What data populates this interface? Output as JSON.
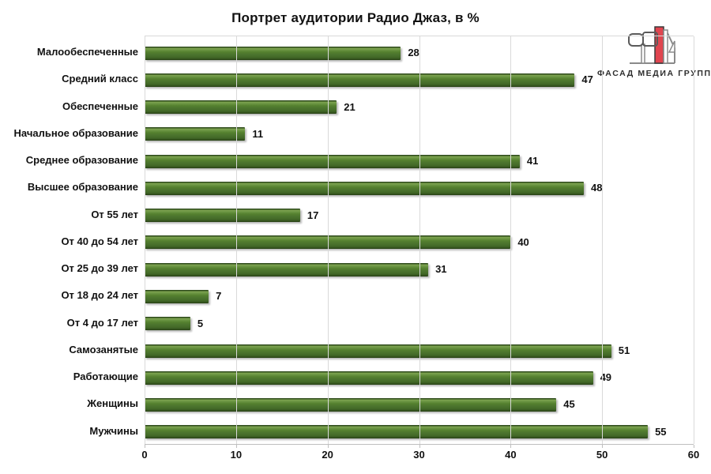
{
  "title": "Портрет аудитории Радио Джаз, в %",
  "logo": {
    "text": "ФАСАД МЕДИА ГРУПП",
    "icon": "fasad-media-group-monogram",
    "accent_color": "#e0454f",
    "outline_color": "#8a8a8a",
    "text_color": "#2e2e2e"
  },
  "chart_data": {
    "type": "bar",
    "orientation": "horizontal",
    "order": "top-to-bottom",
    "title": "Портрет аудитории Радио Джаз, в %",
    "categories": [
      "Малообеспеченные",
      "Средний класс",
      "Обеспеченные",
      "Начальное образование",
      "Среднее образование",
      "Высшее образование",
      "От 55 лет",
      "От 40 до 54 лет",
      "От 25 до 39 лет",
      "От 18 до 24 лет",
      "От 4 до 17 лет",
      "Самозанятые",
      "Работающие",
      "Женщины",
      "Мужчины"
    ],
    "values": [
      28,
      47,
      21,
      11,
      41,
      48,
      17,
      40,
      31,
      7,
      5,
      51,
      49,
      45,
      55
    ],
    "data_labels": true,
    "xlabel": "",
    "ylabel": "",
    "xlim": [
      0,
      60
    ],
    "xticks": [
      0,
      10,
      20,
      30,
      40,
      50,
      60
    ],
    "grid": "vertical",
    "legend": "none",
    "bar_fill": "#4c752e",
    "bar_highlight": "#7da24f",
    "bar_dark_edge": "#243d12",
    "gridline_color": "#d9d9d9",
    "axis_color": "#bfbfbf",
    "background": "#ffffff"
  }
}
